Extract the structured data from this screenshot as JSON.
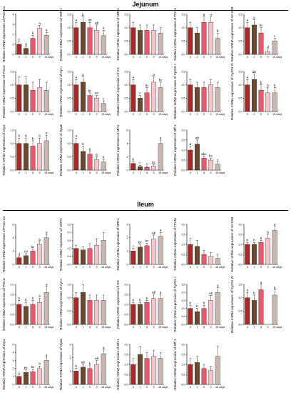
{
  "sections": [
    {
      "title": "Jejunum"
    },
    {
      "title": "Ileum"
    }
  ],
  "colors": {
    "bar_fills": [
      "#a32a2a",
      "#6b4a2a",
      "#e85a6a",
      "#f6c6cc",
      "#c8b6b3"
    ],
    "axis": "#000000",
    "letter": "#000000"
  },
  "chart_data": [
    {
      "type": "bar",
      "section": "Jejunum",
      "categories": [
        "0",
        "1",
        "5",
        "9",
        "15 days"
      ],
      "values": [
        1.0,
        0.6,
        1.6,
        2.6,
        1.9
      ],
      "errors": [
        0.3,
        0.2,
        0.3,
        0.3,
        0.3
      ],
      "letters": [
        "c",
        "d",
        "b",
        "a",
        "a"
      ],
      "ylabel": "Relative mRNA expression of PGC-1α",
      "ylim": [
        0,
        4
      ],
      "yticks": [
        0,
        1,
        2,
        3,
        4
      ]
    },
    {
      "type": "bar",
      "section": "Jejunum",
      "categories": [
        "0",
        "1",
        "5",
        "9",
        "15 days"
      ],
      "values": [
        1.0,
        1.2,
        1.0,
        0.9,
        0.7
      ],
      "errors": [
        0.2,
        0.2,
        0.2,
        0.2,
        0.2
      ],
      "letters": [
        "a",
        "b",
        "ab",
        "ab",
        "b"
      ],
      "ylabel": "Relative mRNA expression of SIRT1",
      "ylim": [
        0,
        1.5
      ],
      "yticks": [
        0.0,
        0.5,
        1.0,
        1.5
      ]
    },
    {
      "type": "bar",
      "section": "Jejunum",
      "categories": [
        "0",
        "1",
        "5",
        "9",
        "15 days"
      ],
      "values": [
        1.0,
        0.9,
        0.9,
        0.9,
        0.8
      ],
      "errors": [
        0.2,
        0.2,
        0.2,
        0.2,
        0.2
      ],
      "letters": [
        "",
        "",
        "",
        "",
        ""
      ],
      "ylabel": "Relative mRNA expression of NRF1",
      "ylim": [
        0,
        1.5
      ],
      "yticks": [
        0.0,
        0.5,
        1.0,
        1.5
      ]
    },
    {
      "type": "bar",
      "section": "Jejunum",
      "categories": [
        "0",
        "1",
        "5",
        "9",
        "15 days"
      ],
      "values": [
        1.0,
        0.8,
        1.2,
        1.2,
        0.6
      ],
      "errors": [
        0.2,
        0.2,
        0.2,
        0.2,
        0.2
      ],
      "letters": [
        "",
        "",
        "a",
        "a",
        "b"
      ],
      "ylabel": "Relative mRNA expression of TFAM",
      "ylim": [
        0,
        1.5
      ],
      "yticks": [
        0.0,
        0.5,
        1.0,
        1.5
      ]
    },
    {
      "type": "bar",
      "section": "Jejunum",
      "categories": [
        "0",
        "1",
        "5",
        "9",
        "15 days"
      ],
      "values": [
        1.0,
        1.1,
        0.8,
        0.1,
        0.5
      ],
      "errors": [
        0.2,
        0.2,
        0.2,
        0.1,
        0.1
      ],
      "letters": [
        "a",
        "a",
        "bc",
        "d",
        "c"
      ],
      "ylabel": "Relative mRNA expression of mt-SSB",
      "ylim": [
        0,
        1.5
      ],
      "yticks": [
        0.0,
        0.5,
        1.0,
        1.5
      ]
    },
    {
      "type": "bar",
      "section": "Jejunum",
      "categories": [
        "0",
        "1",
        "5",
        "9",
        "15 days"
      ],
      "values": [
        1.0,
        1.0,
        0.8,
        0.9,
        0.8
      ],
      "errors": [
        0.3,
        0.3,
        0.3,
        0.3,
        0.3
      ],
      "letters": [
        "",
        "",
        "",
        "",
        ""
      ],
      "ylabel": "Relative mRNA expression of POLG",
      "ylim": [
        0,
        1.5
      ],
      "yticks": [
        0.0,
        0.5,
        1.0,
        1.5
      ]
    },
    {
      "type": "bar",
      "section": "Jejunum",
      "categories": [
        "0",
        "1",
        "5",
        "9",
        "15 days"
      ],
      "values": [
        1.0,
        1.1,
        0.6,
        0.5,
        0.3
      ],
      "errors": [
        0.2,
        0.2,
        0.1,
        0.1,
        0.1
      ],
      "letters": [
        "a",
        "a",
        "bc",
        "bc",
        "c"
      ],
      "ylabel": "Relative mRNA expression of Cyt c",
      "ylim": [
        0,
        1.5
      ],
      "yticks": [
        0.0,
        0.5,
        1.0,
        1.5
      ]
    },
    {
      "type": "bar",
      "section": "Jejunum",
      "categories": [
        "0",
        "1",
        "5",
        "9",
        "15 days"
      ],
      "values": [
        1.0,
        0.5,
        0.7,
        1.1,
        0.9
      ],
      "errors": [
        0.2,
        0.1,
        0.2,
        0.2,
        0.2
      ],
      "letters": [
        "a",
        "c",
        "bc",
        "a",
        "bc"
      ],
      "ylabel": "Relative mRNA expression of CS",
      "ylim": [
        0,
        1.5
      ],
      "yticks": [
        0.0,
        0.5,
        1.0,
        1.5
      ]
    },
    {
      "type": "bar",
      "section": "Jejunum",
      "categories": [
        "0",
        "1",
        "5",
        "9",
        "15 days"
      ],
      "values": [
        1.0,
        0.9,
        0.9,
        1.0,
        0.9
      ],
      "errors": [
        0.2,
        0.2,
        0.2,
        0.2,
        0.2
      ],
      "letters": [
        "",
        "",
        "",
        "",
        ""
      ],
      "ylabel": "Relative mRNA expression of CytOX I",
      "ylim": [
        0,
        1.5
      ],
      "yticks": [
        0.0,
        0.5,
        1.0,
        1.5
      ]
    },
    {
      "type": "bar",
      "section": "Jejunum",
      "categories": [
        "0",
        "1",
        "5",
        "9",
        "15 days"
      ],
      "values": [
        1.0,
        1.2,
        0.8,
        0.7,
        0.7
      ],
      "errors": [
        0.2,
        0.2,
        0.2,
        0.2,
        0.2
      ],
      "letters": [
        "a",
        "ab",
        "b",
        "b",
        "b"
      ],
      "ylabel": "Relative mRNA expression of CytOX IV",
      "ylim": [
        0,
        1.5
      ],
      "yticks": [
        0.0,
        0.5,
        1.0,
        1.5
      ]
    },
    {
      "type": "bar",
      "section": "Jejunum",
      "categories": [
        "0",
        "1",
        "5",
        "9",
        "15 days"
      ],
      "values": [
        1.0,
        1.0,
        0.9,
        1.0,
        1.1
      ],
      "errors": [
        0.2,
        0.2,
        0.2,
        0.2,
        0.2
      ],
      "letters": [
        "b",
        "b",
        "b",
        "b",
        "b"
      ],
      "ylabel": "Relative mRNA expression of Drp1",
      "ylim": [
        0,
        1.5
      ],
      "yticks": [
        0.0,
        0.5,
        1.0,
        1.5
      ]
    },
    {
      "type": "bar",
      "section": "Jejunum",
      "categories": [
        "0",
        "1",
        "5",
        "9",
        "15 days"
      ],
      "values": [
        1.0,
        0.7,
        0.6,
        0.4,
        0.3
      ],
      "errors": [
        0.2,
        0.2,
        0.1,
        0.1,
        0.1
      ],
      "letters": [
        "a",
        "b",
        "b",
        "b",
        "b"
      ],
      "ylabel": "Relative mRNA expression of Opa1",
      "ylim": [
        0,
        1.5
      ],
      "yticks": [
        0.0,
        0.5,
        1.0,
        1.5
      ]
    },
    {
      "type": "bar",
      "section": "Jejunum",
      "categories": [
        "0",
        "1",
        "5",
        "9",
        "15 days"
      ],
      "values": [
        1.0,
        0.5,
        0.4,
        0.6,
        4.0
      ],
      "errors": [
        0.3,
        0.2,
        0.2,
        0.2,
        0.5
      ],
      "letters": [
        "b",
        "c",
        "c",
        "bc",
        "a"
      ],
      "ylabel": "Relative mRNA expression of Mfn1",
      "ylim": [
        0,
        6
      ],
      "yticks": [
        0,
        2,
        4,
        6
      ]
    },
    {
      "type": "bar",
      "section": "Jejunum",
      "categories": [
        "0",
        "1",
        "5",
        "9",
        "15 days"
      ],
      "values": [
        1.0,
        1.3,
        0.6,
        0.5,
        0.3
      ],
      "errors": [
        0.2,
        0.2,
        0.1,
        0.1,
        0.1
      ],
      "letters": [
        "a",
        "ab",
        "abc",
        "bc",
        "c"
      ],
      "ylabel": "Relative mRNA expression of Mff-1",
      "ylim": [
        0,
        2.0
      ],
      "yticks": [
        0.0,
        0.5,
        1.0,
        1.5,
        2.0
      ]
    },
    {
      "type": "bar",
      "section": "Ileum",
      "categories": [
        "0",
        "1",
        "5",
        "9",
        "15 days"
      ],
      "values": [
        1.0,
        1.3,
        2.0,
        3.0,
        4.0
      ],
      "errors": [
        0.2,
        0.3,
        0.3,
        0.4,
        0.5
      ],
      "letters": [
        "d",
        "cd",
        "bc",
        "b",
        "a"
      ],
      "ylabel": "Relative mRNA expression of PGC-1α",
      "ylim": [
        0,
        6
      ],
      "yticks": [
        0,
        2,
        4,
        6
      ]
    },
    {
      "type": "bar",
      "section": "Ileum",
      "categories": [
        "0",
        "1",
        "5",
        "9",
        "15 days"
      ],
      "values": [
        1.0,
        0.9,
        1.0,
        1.2,
        1.5
      ],
      "errors": [
        0.2,
        0.2,
        0.3,
        0.4,
        0.5
      ],
      "letters": [
        "",
        "",
        "",
        "",
        ""
      ],
      "ylabel": "Relative mRNA expression of SIRT1",
      "ylim": [
        0,
        2.5
      ],
      "yticks": [
        0.0,
        0.5,
        1.0,
        1.5,
        2.0,
        2.5
      ]
    },
    {
      "type": "bar",
      "section": "Ileum",
      "categories": [
        "0",
        "1",
        "5",
        "9",
        "15 days"
      ],
      "values": [
        1.0,
        1.3,
        1.4,
        1.9,
        2.1
      ],
      "errors": [
        0.2,
        0.2,
        0.2,
        0.3,
        0.3
      ],
      "letters": [
        "c",
        "bc",
        "bc",
        "ab",
        "a"
      ],
      "ylabel": "Relative mRNA expression of NRF1",
      "ylim": [
        0,
        3
      ],
      "yticks": [
        0,
        1,
        2,
        3
      ]
    },
    {
      "type": "bar",
      "section": "Ileum",
      "categories": [
        "0",
        "1",
        "5",
        "9",
        "15 days"
      ],
      "values": [
        1.0,
        0.9,
        0.5,
        0.4,
        0.3
      ],
      "errors": [
        0.3,
        0.3,
        0.2,
        0.2,
        0.2
      ],
      "letters": [
        "",
        "",
        "",
        "",
        ""
      ],
      "ylabel": "Relative mRNA expression of TFAM",
      "ylim": [
        0,
        2.0
      ],
      "yticks": [
        0.0,
        0.5,
        1.0,
        1.5,
        2.0
      ]
    },
    {
      "type": "bar",
      "section": "Ileum",
      "categories": [
        "0",
        "1",
        "5",
        "9",
        "15 days"
      ],
      "values": [
        1.0,
        1.0,
        1.1,
        1.3,
        1.7
      ],
      "errors": [
        0.1,
        0.1,
        0.1,
        0.2,
        0.2
      ],
      "letters": [
        "b",
        "b",
        "b",
        "b",
        "a"
      ],
      "ylabel": "Relative mRNA expression of mt-SSB",
      "ylim": [
        0,
        2.0
      ],
      "yticks": [
        0.0,
        0.5,
        1.0,
        1.5,
        2.0
      ]
    },
    {
      "type": "bar",
      "section": "Ileum",
      "categories": [
        "0",
        "1",
        "5",
        "9",
        "15 days"
      ],
      "values": [
        1.0,
        0.9,
        1.0,
        1.1,
        1.6
      ],
      "errors": [
        0.2,
        0.2,
        0.2,
        0.2,
        0.3
      ],
      "letters": [
        "b",
        "b",
        "b",
        "b",
        "a"
      ],
      "ylabel": "Relative mRNA expression of POLG",
      "ylim": [
        0,
        2.0
      ],
      "yticks": [
        0.0,
        0.5,
        1.0,
        1.5,
        2.0
      ]
    },
    {
      "type": "bar",
      "section": "Ileum",
      "categories": [
        "0",
        "1",
        "5",
        "9",
        "15 days"
      ],
      "values": [
        1.0,
        1.2,
        0.9,
        0.9,
        0.9
      ],
      "errors": [
        0.2,
        0.3,
        0.2,
        0.2,
        0.2
      ],
      "letters": [
        "",
        "",
        "",
        "",
        ""
      ],
      "ylabel": "Relative mRNA expression of Cyt c",
      "ylim": [
        0,
        1.5
      ],
      "yticks": [
        0.0,
        0.5,
        1.0,
        1.5
      ]
    },
    {
      "type": "bar",
      "section": "Ileum",
      "categories": [
        "0",
        "1",
        "5",
        "9",
        "15 days"
      ],
      "values": [
        1.0,
        1.0,
        1.1,
        1.3,
        1.3
      ],
      "errors": [
        0.1,
        0.1,
        0.1,
        0.2,
        0.2
      ],
      "letters": [
        "b",
        "b",
        "b",
        "ab",
        "a"
      ],
      "ylabel": "Relative mRNA expression of CS",
      "ylim": [
        0,
        2.0
      ],
      "yticks": [
        0.0,
        0.5,
        1.0,
        1.5,
        2.0
      ]
    },
    {
      "type": "bar",
      "section": "Ileum",
      "categories": [
        "0",
        "1",
        "5",
        "9",
        "15 days"
      ],
      "values": [
        1.0,
        0.8,
        1.0,
        1.5,
        2.0
      ],
      "errors": [
        0.2,
        0.2,
        0.2,
        0.3,
        0.3
      ],
      "letters": [
        "b",
        "b",
        "b",
        "ab",
        "a"
      ],
      "ylabel": "Relative mRNA expression of CytOX I",
      "ylim": [
        0,
        2.5
      ],
      "yticks": [
        0.0,
        0.5,
        1.0,
        1.5,
        2.0,
        2.5
      ]
    },
    {
      "type": "bar",
      "section": "Ileum",
      "categories": [
        "0",
        "1",
        "5",
        "9",
        "15 days"
      ],
      "values": [
        1.0,
        0.9,
        1.3,
        0.0,
        1.1
      ],
      "errors": [
        0.2,
        0.2,
        0.2,
        0.0,
        0.2
      ],
      "letters": [
        "a",
        "b",
        "a",
        "",
        "a"
      ],
      "ylabel": "Relative mRNA expression of CytOX IV",
      "ylim": [
        0,
        1.5
      ],
      "yticks": [
        0.0,
        0.5,
        1.0,
        1.5
      ]
    },
    {
      "type": "bar",
      "section": "Ileum",
      "categories": [
        "0",
        "1",
        "5",
        "9",
        "15 days"
      ],
      "values": [
        1.0,
        1.5,
        1.6,
        2.0,
        3.0
      ],
      "errors": [
        0.2,
        0.3,
        0.3,
        0.3,
        0.4
      ],
      "letters": [
        "c",
        "bc",
        "bc",
        "b",
        "a"
      ],
      "ylabel": "Relative mRNA expression of Drp1",
      "ylim": [
        0,
        5
      ],
      "yticks": [
        0,
        1,
        2,
        3,
        4,
        5
      ]
    },
    {
      "type": "bar",
      "section": "Ileum",
      "categories": [
        "0",
        "1",
        "5",
        "9",
        "15 days"
      ],
      "values": [
        1.0,
        1.3,
        1.2,
        1.5,
        2.3
      ],
      "errors": [
        0.2,
        0.2,
        0.2,
        0.3,
        0.3
      ],
      "letters": [
        "b",
        "ab",
        "b",
        "ab",
        "a"
      ],
      "ylabel": "Relative mRNA expression of Opa1",
      "ylim": [
        0,
        3
      ],
      "yticks": [
        0,
        1,
        2,
        3
      ]
    },
    {
      "type": "bar",
      "section": "Ileum",
      "categories": [
        "0",
        "1",
        "5",
        "9",
        "15 days"
      ],
      "values": [
        1.0,
        1.5,
        1.3,
        1.4,
        1.3
      ],
      "errors": [
        0.3,
        0.4,
        0.3,
        0.3,
        0.3
      ],
      "letters": [
        "",
        "",
        "",
        "",
        ""
      ],
      "ylabel": "Relative mRNA expression of Mfn1",
      "ylim": [
        0,
        2.0
      ],
      "yticks": [
        0.0,
        0.5,
        1.0,
        1.5,
        2.0
      ]
    },
    {
      "type": "bar",
      "section": "Ileum",
      "categories": [
        "0",
        "1",
        "5",
        "9",
        "15 days"
      ],
      "values": [
        1.0,
        1.1,
        0.8,
        0.7,
        1.4
      ],
      "errors": [
        0.3,
        0.3,
        0.2,
        0.2,
        0.5
      ],
      "letters": [
        "",
        "",
        "",
        "",
        ""
      ],
      "ylabel": "Relative mRNA expression of Mff-1",
      "ylim": [
        0,
        2.0
      ],
      "yticks": [
        0.0,
        0.5,
        1.0,
        1.5,
        2.0
      ]
    }
  ]
}
